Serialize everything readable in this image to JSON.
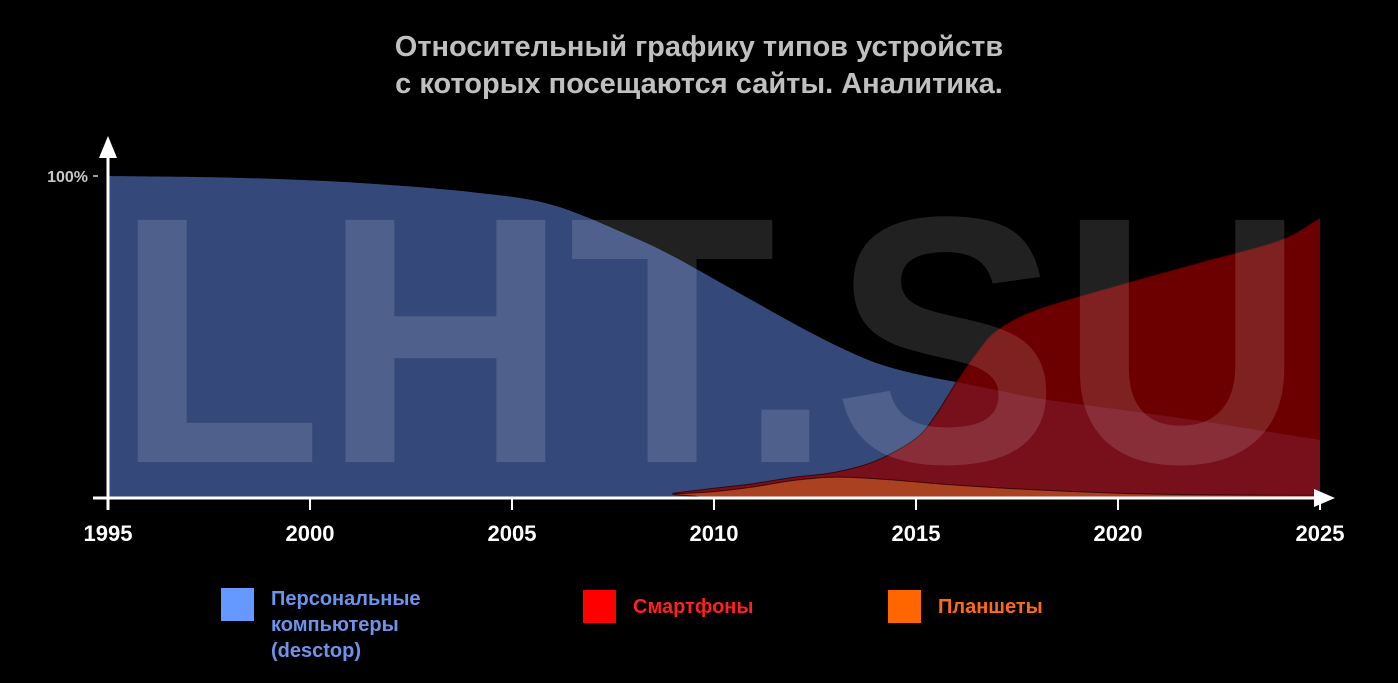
{
  "chart_data": {
    "type": "area",
    "title_lines": [
      "Относительный графику типов устройств",
      "с которых посещаются сайты. Аналитика."
    ],
    "watermark": "LHT.SU",
    "x_ticks": [
      "1995",
      "2000",
      "2005",
      "2010",
      "2015",
      "2020",
      "2025"
    ],
    "xlim": [
      1995,
      2025
    ],
    "ylim": [
      0,
      100
    ],
    "y_tick_label": "100%",
    "y_tick_value": 100,
    "series": [
      {
        "name": "Персональные компьютеры (desctop)",
        "color": "#6699ff",
        "fill": "#34497a",
        "x": [
          1995,
          1998,
          2001,
          2004,
          2006,
          2008,
          2009,
          2010,
          2011,
          2012,
          2013,
          2014,
          2015,
          2016,
          2017,
          2018,
          2020,
          2022,
          2025
        ],
        "y": [
          100,
          99.5,
          98,
          95,
          91,
          81,
          75,
          68,
          61,
          54,
          47.5,
          42,
          38.5,
          36,
          33.5,
          31,
          27.5,
          24,
          18
        ]
      },
      {
        "name": "Смартфоны",
        "color": "#ff0000",
        "fill": "#8b0000",
        "x": [
          1995,
          2008.5,
          2009,
          2010,
          2011,
          2012,
          2013,
          2014,
          2015,
          2015.5,
          2016,
          2016.5,
          2017,
          2018,
          2020,
          2022,
          2024,
          2025
        ],
        "y": [
          0,
          0,
          1.5,
          3,
          4.5,
          6.5,
          8,
          11.5,
          18.5,
          26,
          36,
          45,
          52,
          58.5,
          66,
          73,
          80,
          87
        ]
      },
      {
        "name": "Планшеты",
        "color": "#ff6600",
        "fill": "#b34a22",
        "x": [
          1995,
          2008.5,
          2009,
          2010,
          2011,
          2012,
          2013,
          2014,
          2015,
          2016,
          2018,
          2020,
          2022,
          2025
        ],
        "y": [
          0,
          0,
          1.2,
          2,
          3.5,
          5.5,
          6.5,
          6,
          5,
          4,
          2.5,
          1.5,
          1,
          0.8
        ]
      }
    ]
  },
  "legend": [
    {
      "label": "Персональные\nкомпьютеры\n(desctop)",
      "color": "#6699ff",
      "text_color": "#6d93ec"
    },
    {
      "label": "Смартфоны",
      "color": "#ff0000",
      "text_color": "#ff2020"
    },
    {
      "label": "Планшеты",
      "color": "#ff6600",
      "text_color": "#ff6a1a"
    }
  ]
}
